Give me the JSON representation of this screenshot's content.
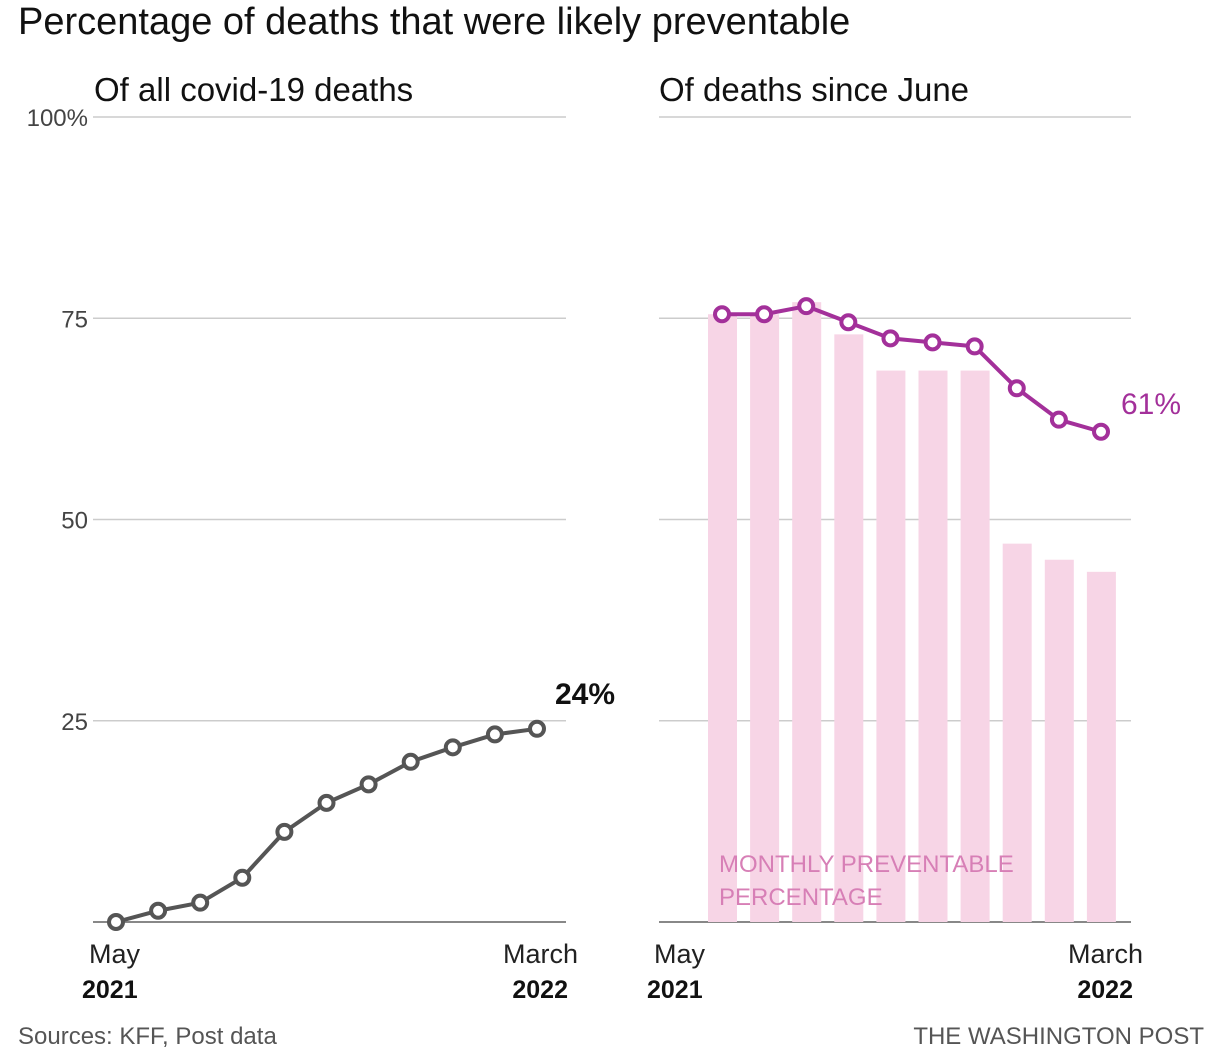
{
  "title": "Percentage of deaths that were likely preventable",
  "footer": {
    "sources": "Sources: KFF, Post data",
    "credit": "THE WASHINGTON POST"
  },
  "colors": {
    "left_line": "#555555",
    "right_line": "#a3309a",
    "bars": "#f7d5e6",
    "bar_label": "#d77fb6"
  },
  "chart_data": [
    {
      "type": "line",
      "subtitle": "Of all covid-19 deaths",
      "ylim": [
        0,
        100
      ],
      "yticks": [
        "100%",
        "75",
        "50",
        "25"
      ],
      "x_start": {
        "month": "May",
        "year": "2021"
      },
      "x_end": {
        "month": "March",
        "year": "2022"
      },
      "series": [
        {
          "values": [
            0,
            1.4,
            2.4,
            5.5,
            11.2,
            14.8,
            17.1,
            19.9,
            21.7,
            23.3,
            24
          ]
        }
      ],
      "end_label": "24%",
      "grid": true
    },
    {
      "type": "bar+line",
      "subtitle": "Of deaths since June",
      "ylim": [
        0,
        100
      ],
      "x_start": {
        "month": "May",
        "year": "2021"
      },
      "x_end": {
        "month": "March",
        "year": "2022"
      },
      "bars": [
        75.5,
        75.5,
        77,
        73,
        68.5,
        68.5,
        68.5,
        47,
        45,
        43.5
      ],
      "bar_label": [
        "MONTHLY PREVENTABLE",
        "PERCENTAGE"
      ],
      "series": [
        {
          "values": [
            75.5,
            75.5,
            76.5,
            74.5,
            72.5,
            72,
            71.5,
            66.3,
            62.4,
            60.9
          ]
        }
      ],
      "end_label": "61%",
      "grid": true
    }
  ]
}
